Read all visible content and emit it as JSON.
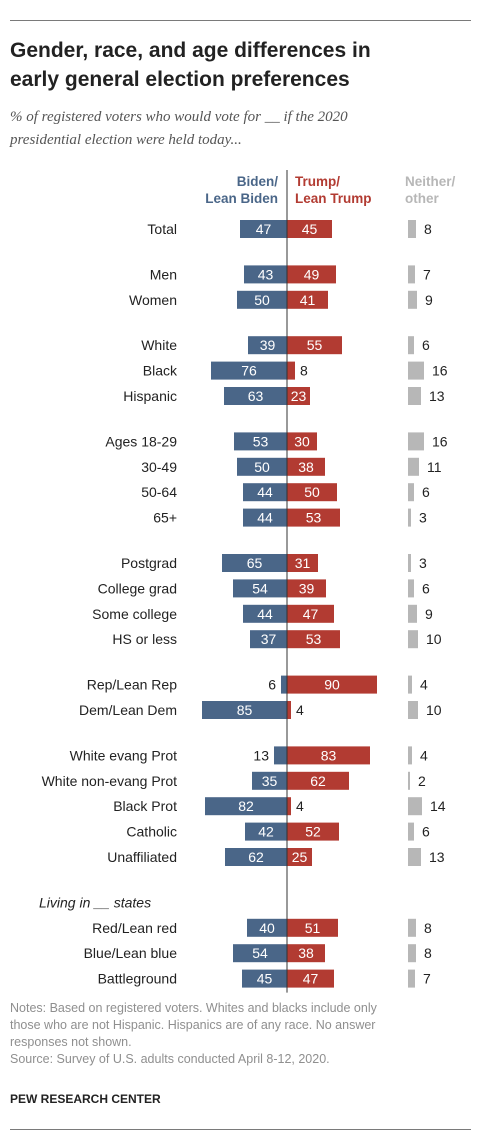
{
  "title_lines": [
    "Gender, race, and age differences in",
    "early general election preferences"
  ],
  "subtitle_lines": [
    "% of registered voters who would vote for __ if the 2020",
    "presidential election were held today..."
  ],
  "notes_lines": [
    "Notes: Based on registered voters. Whites and blacks include only",
    "those who are not Hispanic. Hispanics are of any race. No answer",
    "responses not shown.",
    "Source: Survey of U.S. adults conducted April 8-12, 2020."
  ],
  "footer": "PEW RESEARCH CENTER",
  "colors": {
    "biden": "#4a6688",
    "trump": "#b23b32",
    "other": "#b7b7b7",
    "text": "#222222"
  },
  "chart_data": {
    "type": "bar",
    "orientation": "horizontal-diverging",
    "series": [
      {
        "name": "Biden/ Lean Biden",
        "values": [
          47,
          43,
          50,
          39,
          76,
          63,
          53,
          50,
          44,
          44,
          65,
          54,
          44,
          37,
          6,
          85,
          13,
          35,
          82,
          42,
          62,
          40,
          54,
          45
        ]
      },
      {
        "name": "Trump/ Lean Trump",
        "values": [
          45,
          49,
          41,
          55,
          8,
          23,
          30,
          38,
          50,
          53,
          31,
          39,
          47,
          53,
          90,
          4,
          83,
          62,
          4,
          52,
          25,
          51,
          38,
          47
        ]
      },
      {
        "name": "Neither/ other",
        "values": [
          8,
          7,
          9,
          6,
          16,
          13,
          16,
          11,
          6,
          3,
          3,
          6,
          9,
          10,
          4,
          10,
          4,
          2,
          14,
          6,
          13,
          8,
          8,
          7
        ]
      }
    ],
    "categories": [
      "Total",
      "Men",
      "Women",
      "White",
      "Black",
      "Hispanic",
      "Ages 18-29",
      "30-49",
      "50-64",
      "65+",
      "Postgrad",
      "College grad",
      "Some college",
      "HS or less",
      "Rep/Lean Rep",
      "Dem/Lean Dem",
      "White evang Prot",
      "White non-evang Prot",
      "Black Prot",
      "Catholic",
      "Unaffiliated",
      "Red/Lean red",
      "Blue/Lean blue",
      "Battleground"
    ],
    "groups": [
      {
        "heading": "",
        "size": 1
      },
      {
        "heading": "",
        "size": 2
      },
      {
        "heading": "",
        "size": 3
      },
      {
        "heading": "",
        "size": 4
      },
      {
        "heading": "",
        "size": 4
      },
      {
        "heading": "",
        "size": 2
      },
      {
        "heading": "",
        "size": 5
      },
      {
        "heading": "Living in __ states",
        "size": 3
      }
    ]
  }
}
